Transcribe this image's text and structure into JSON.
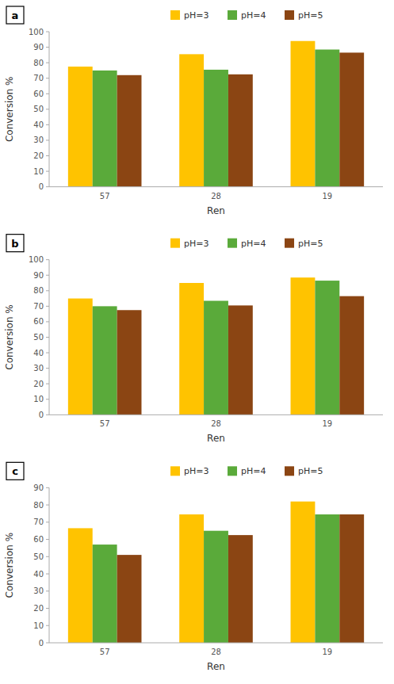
{
  "chart_data": [
    {
      "type": "bar",
      "title": "a",
      "xlabel": "Ren",
      "ylabel": "Conversion %",
      "categories": [
        "57",
        "28",
        "19"
      ],
      "series": [
        {
          "name": "pH=3",
          "color": "#FFC300",
          "values": [
            77.5,
            85.5,
            94.0
          ]
        },
        {
          "name": "pH=4",
          "color": "#5aaa3a",
          "values": [
            75.0,
            75.5,
            88.5
          ]
        },
        {
          "name": "pH=5",
          "color": "#8B4513",
          "values": [
            72.0,
            72.5,
            86.5
          ]
        }
      ],
      "ylim": [
        0,
        100
      ],
      "yticks": [
        0,
        10,
        20,
        30,
        40,
        50,
        60,
        70,
        80,
        90,
        100
      ],
      "grid": false,
      "legend": "top"
    },
    {
      "type": "bar",
      "title": "b",
      "xlabel": "Ren",
      "ylabel": "Conversion %",
      "categories": [
        "57",
        "28",
        "19"
      ],
      "series": [
        {
          "name": "pH=3",
          "color": "#FFC300",
          "values": [
            75.0,
            85.0,
            88.5
          ]
        },
        {
          "name": "pH=4",
          "color": "#5aaa3a",
          "values": [
            70.0,
            73.5,
            86.5
          ]
        },
        {
          "name": "pH=5",
          "color": "#8B4513",
          "values": [
            67.5,
            70.5,
            76.5
          ]
        }
      ],
      "ylim": [
        0,
        100
      ],
      "yticks": [
        0,
        10,
        20,
        30,
        40,
        50,
        60,
        70,
        80,
        90,
        100
      ],
      "grid": false,
      "legend": "top"
    },
    {
      "type": "bar",
      "title": "c",
      "xlabel": "Ren",
      "ylabel": "Conversion %",
      "categories": [
        "57",
        "28",
        "19"
      ],
      "series": [
        {
          "name": "pH=3",
          "color": "#FFC300",
          "values": [
            66.5,
            74.5,
            82.0
          ]
        },
        {
          "name": "pH=4",
          "color": "#5aaa3a",
          "values": [
            57.0,
            65.0,
            74.5
          ]
        },
        {
          "name": "pH=5",
          "color": "#8B4513",
          "values": [
            51.0,
            62.5,
            74.5
          ]
        }
      ],
      "ylim": [
        0,
        90
      ],
      "yticks": [
        0,
        10,
        20,
        30,
        40,
        50,
        60,
        70,
        80,
        90
      ],
      "grid": false,
      "legend": "top"
    }
  ]
}
